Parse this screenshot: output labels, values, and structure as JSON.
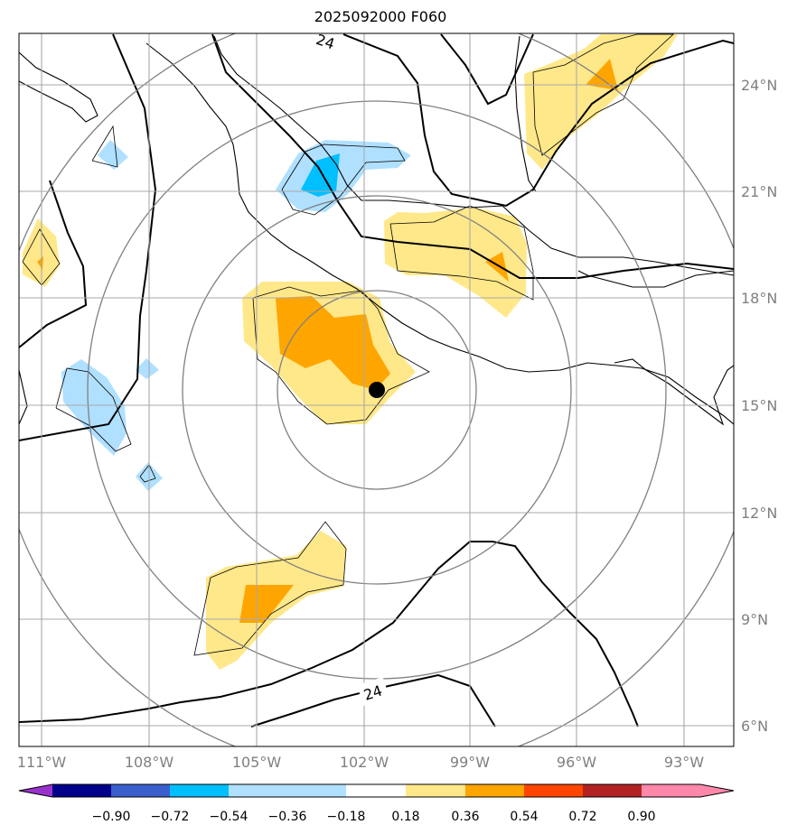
{
  "title": "2025092000 F060",
  "map": {
    "lon_labels": [
      "111°W",
      "108°W",
      "105°W",
      "102°W",
      "99°W",
      "96°W",
      "93°W"
    ],
    "lat_labels": [
      "24°N",
      "21°N",
      "18°N",
      "15°N",
      "12°N",
      "9°N",
      "6°N"
    ],
    "contour_labels": [
      "24",
      "24"
    ],
    "storm_center": {
      "lon": -101.7,
      "lat": 15.4
    }
  },
  "colorbar": {
    "ticks": [
      "−0.90",
      "−0.72",
      "−0.54",
      "−0.36",
      "−0.18",
      "0.18",
      "0.36",
      "0.54",
      "0.72",
      "0.90"
    ],
    "colors": [
      "#9932cc",
      "#00008b",
      "#3a5fcd",
      "#00bfff",
      "#b0e0ff",
      "#ffffff",
      "#ffe88a",
      "#ffa500",
      "#ff4500",
      "#b22222",
      "#ff88aa"
    ]
  },
  "style": {
    "blue_light": "#b0e0ff",
    "blue_mid": "#00bfff",
    "yellow": "#ffe88a",
    "orange": "#ffa500",
    "grid": "#a9a9a9",
    "ring": "#808080"
  }
}
